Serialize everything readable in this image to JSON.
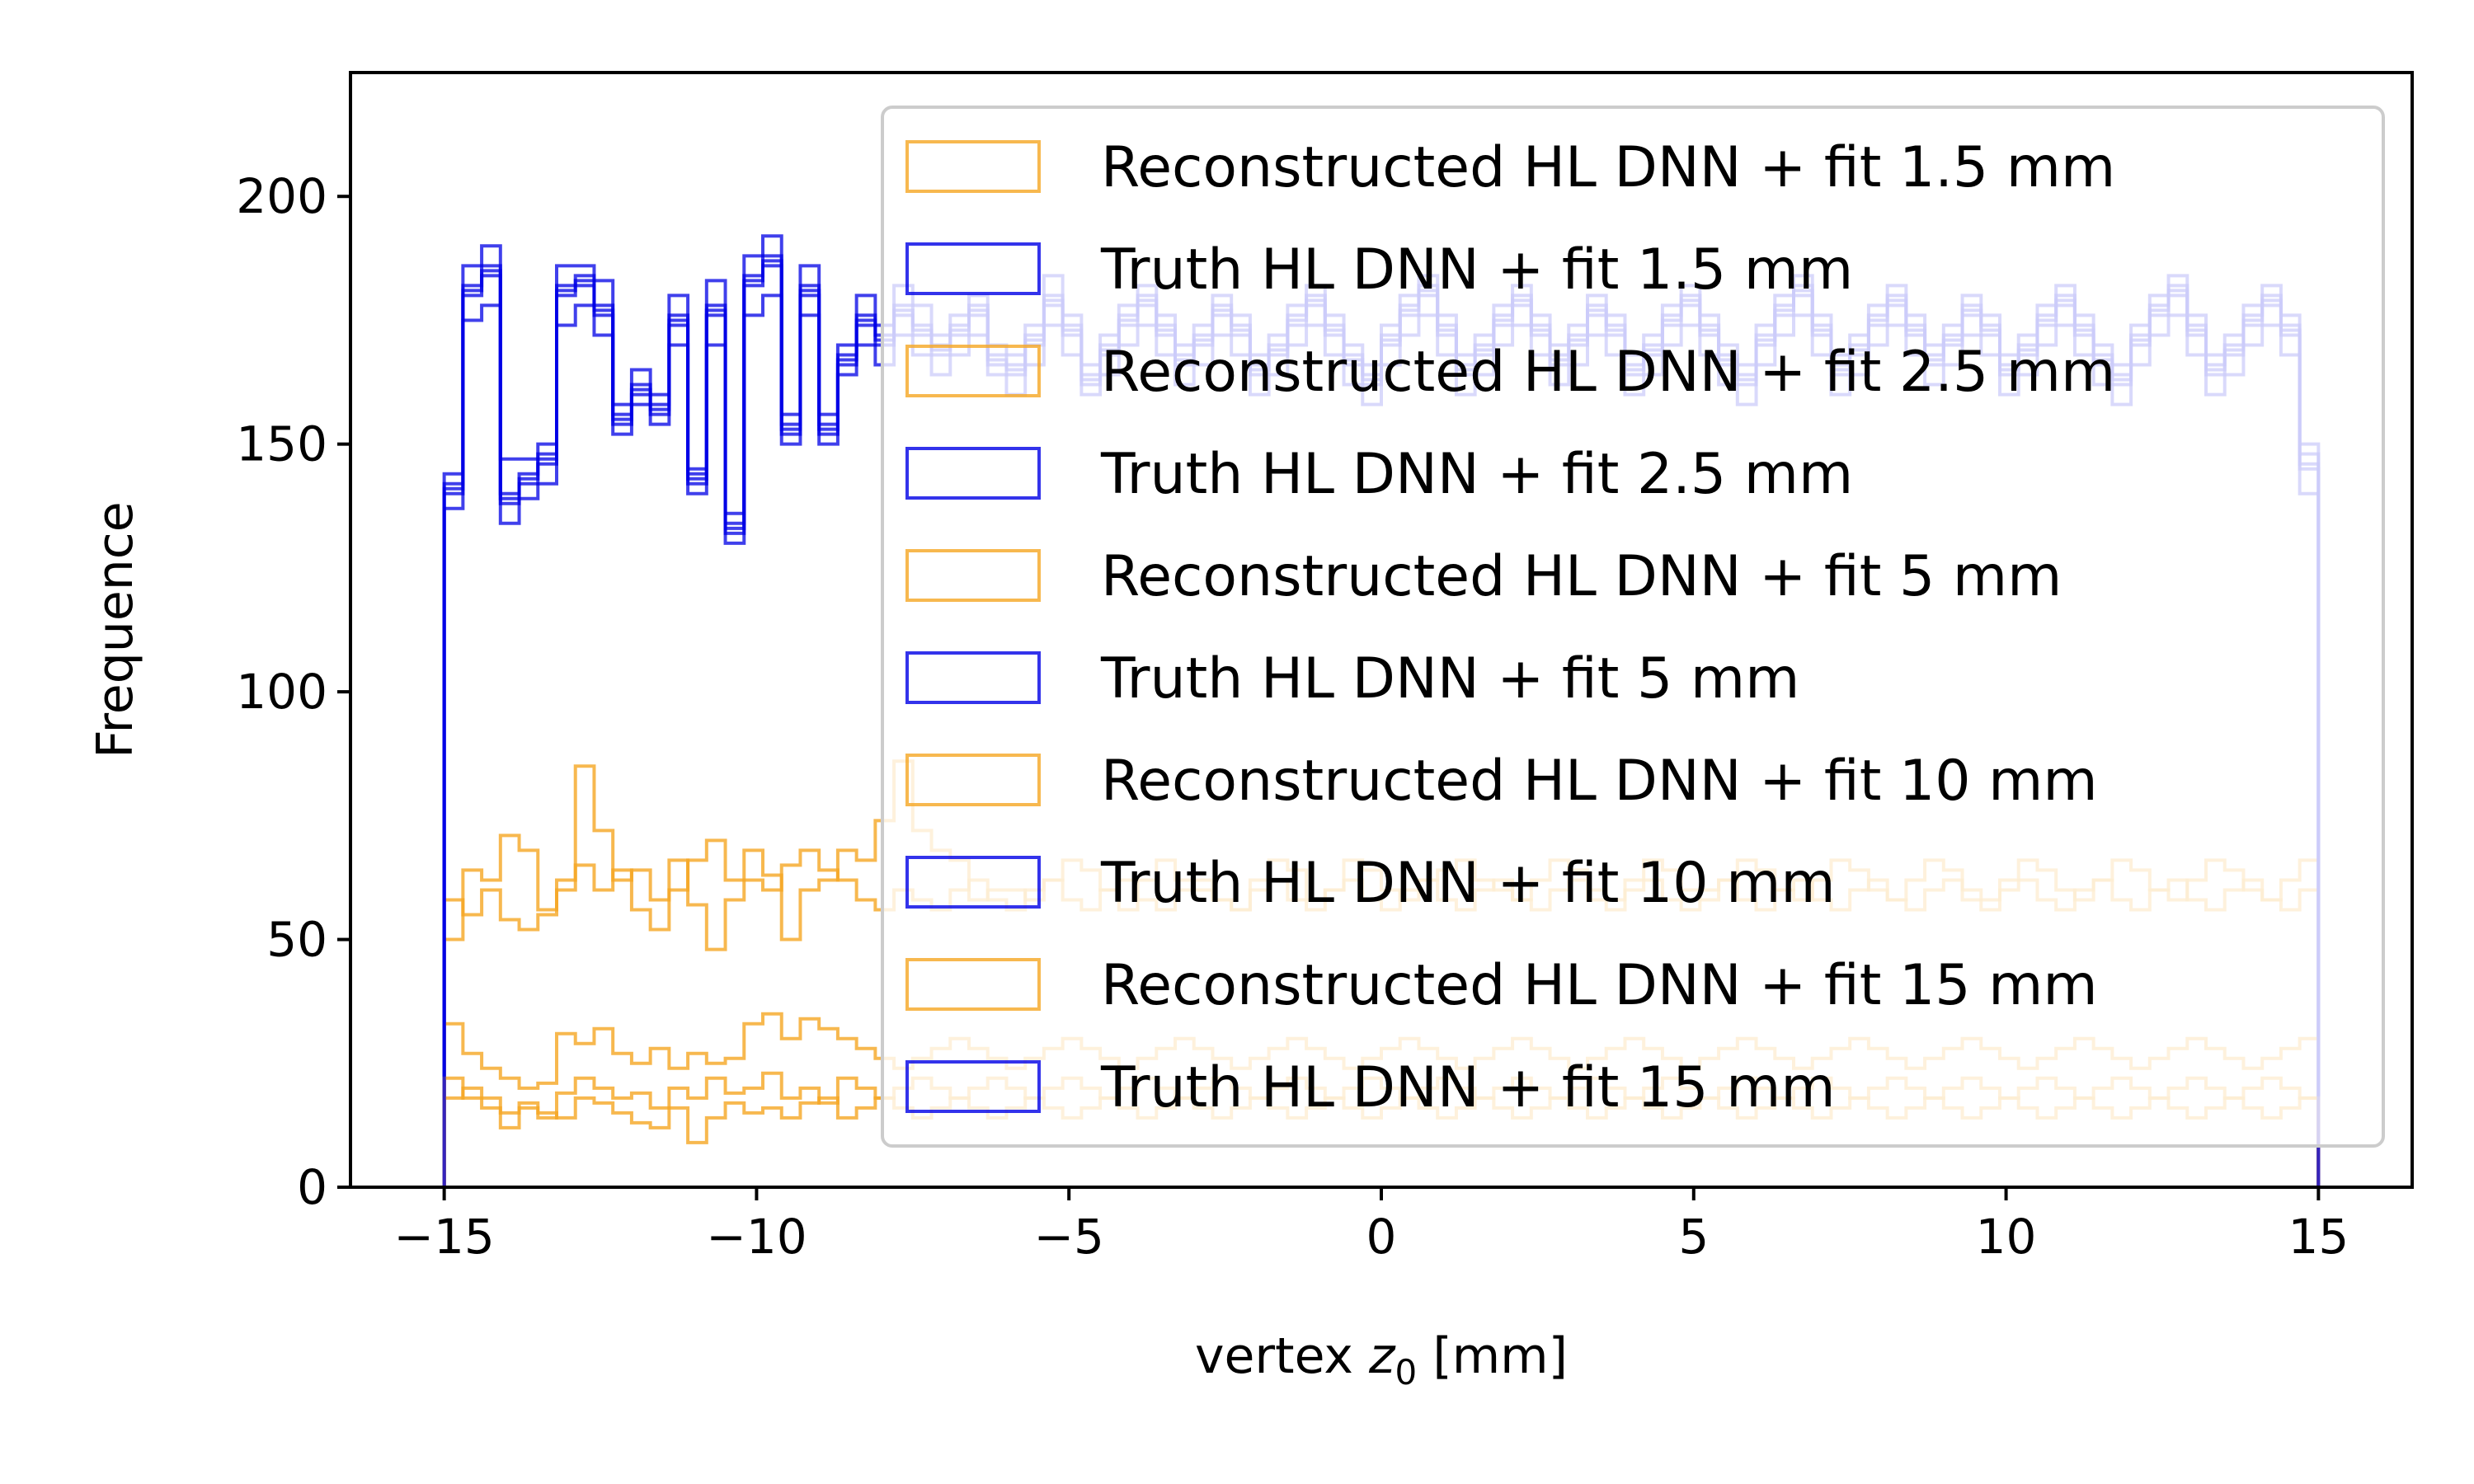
{
  "colors": {
    "reconstructed": "#f5a623",
    "truth": "#0000e6",
    "legend_frame": "#cccccc"
  },
  "chart_data": {
    "type": "histogram-step",
    "xlabel_prefix": "vertex ",
    "xlabel_var": "z",
    "xlabel_sub": "0",
    "xlabel_suffix": " [mm]",
    "ylabel": "Frequence",
    "xlim": [
      -16.5,
      16.5
    ],
    "ylim": [
      0,
      225
    ],
    "x_ticks": [
      -15,
      -10,
      -5,
      0,
      5,
      10,
      15
    ],
    "x_tick_labels": [
      "−15",
      "−10",
      "−5",
      "0",
      "5",
      "10",
      "15"
    ],
    "y_ticks": [
      0,
      50,
      100,
      150,
      200
    ],
    "y_tick_labels": [
      "0",
      "50",
      "100",
      "150",
      "200"
    ],
    "bin_edges_range": [
      -15,
      15
    ],
    "bin_width": 0.3,
    "legend_position": "upper-right",
    "series": [
      {
        "name": "Reconstructed HL DNN + fit 1.5 mm",
        "kind": "reconstructed",
        "values": [
          50,
          64,
          62,
          71,
          68,
          56,
          60,
          85,
          72,
          62,
          64,
          58,
          60,
          66,
          70,
          62,
          68,
          63,
          50,
          60,
          62,
          68,
          66,
          74,
          86,
          72,
          68,
          66,
          58,
          60,
          60,
          58,
          62,
          66,
          64,
          60,
          56,
          62,
          66,
          62,
          60,
          58,
          56,
          62,
          66,
          64,
          58,
          60,
          66,
          64,
          60,
          58,
          62,
          64,
          66,
          62,
          60,
          58,
          62,
          66,
          64,
          60,
          58,
          62,
          66,
          64,
          60,
          58,
          62,
          66,
          64,
          60,
          58,
          62,
          66,
          64,
          60,
          58,
          62,
          66,
          64,
          60,
          58,
          62,
          66,
          64,
          60,
          58,
          62,
          66,
          64,
          60,
          58,
          62,
          66,
          64,
          60,
          58,
          62,
          66
        ]
      },
      {
        "name": "Truth HL DNN + fit 1.5 mm",
        "kind": "truth",
        "values": [
          144,
          186,
          190,
          147,
          147,
          150,
          186,
          186,
          183,
          158,
          165,
          160,
          180,
          145,
          183,
          136,
          188,
          192,
          156,
          186,
          156,
          170,
          180,
          174,
          182,
          178,
          172,
          176,
          180,
          170,
          168,
          174,
          184,
          176,
          166,
          172,
          178,
          182,
          176,
          170,
          174,
          180,
          176,
          168,
          172,
          178,
          182,
          176,
          170,
          166,
          174,
          180,
          184,
          176,
          168,
          172,
          178,
          182,
          176,
          170,
          174,
          180,
          176,
          168,
          172,
          178,
          182,
          176,
          170,
          166,
          174,
          180,
          184,
          176,
          168,
          172,
          178,
          182,
          176,
          170,
          174,
          180,
          176,
          168,
          172,
          178,
          182,
          176,
          170,
          166,
          174,
          180,
          184,
          176,
          168,
          172,
          178,
          182,
          176,
          150
        ]
      },
      {
        "name": "Reconstructed HL DNN + fit 2.5 mm",
        "kind": "reconstructed",
        "values": [
          58,
          55,
          60,
          54,
          52,
          55,
          62,
          65,
          60,
          64,
          56,
          52,
          66,
          57,
          48,
          58,
          62,
          60,
          65,
          68,
          64,
          62,
          58,
          56,
          60,
          58,
          56,
          60,
          62,
          58,
          56,
          60,
          62,
          58,
          56,
          60,
          62,
          58,
          56,
          60,
          62,
          58,
          56,
          60,
          62,
          58,
          56,
          60,
          62,
          58,
          56,
          60,
          62,
          58,
          56,
          60,
          62,
          58,
          56,
          60,
          62,
          58,
          56,
          60,
          62,
          58,
          56,
          60,
          62,
          58,
          56,
          60,
          62,
          58,
          56,
          60,
          62,
          58,
          56,
          60,
          62,
          58,
          56,
          60,
          62,
          58,
          56,
          60,
          62,
          58,
          56,
          60,
          62,
          58,
          56,
          60,
          62,
          58,
          56,
          60
        ]
      },
      {
        "name": "Truth HL DNN + fit 2.5 mm",
        "kind": "truth",
        "values": [
          137,
          175,
          178,
          134,
          139,
          142,
          174,
          178,
          172,
          152,
          158,
          154,
          170,
          140,
          170,
          130,
          176,
          180,
          150,
          176,
          150,
          164,
          170,
          166,
          172,
          168,
          164,
          168,
          172,
          164,
          160,
          166,
          174,
          168,
          160,
          164,
          170,
          174,
          168,
          162,
          166,
          172,
          168,
          160,
          164,
          170,
          174,
          168,
          162,
          158,
          166,
          172,
          176,
          168,
          160,
          164,
          170,
          174,
          168,
          162,
          166,
          172,
          168,
          160,
          164,
          170,
          174,
          168,
          162,
          158,
          166,
          172,
          176,
          168,
          160,
          164,
          170,
          174,
          168,
          162,
          166,
          172,
          168,
          160,
          164,
          170,
          174,
          168,
          162,
          158,
          166,
          172,
          176,
          168,
          160,
          164,
          170,
          174,
          168,
          140
        ]
      },
      {
        "name": "Reconstructed HL DNN + fit 5 mm",
        "kind": "reconstructed",
        "values": [
          33,
          27,
          24,
          22,
          20,
          21,
          31,
          29,
          32,
          27,
          25,
          28,
          24,
          27,
          25,
          26,
          33,
          35,
          30,
          34,
          32,
          30,
          28,
          26,
          24,
          26,
          28,
          30,
          28,
          26,
          24,
          26,
          28,
          30,
          28,
          26,
          24,
          26,
          28,
          30,
          28,
          26,
          24,
          26,
          28,
          30,
          28,
          26,
          24,
          26,
          28,
          30,
          28,
          26,
          24,
          26,
          28,
          30,
          28,
          26,
          24,
          26,
          28,
          30,
          28,
          26,
          24,
          26,
          28,
          30,
          28,
          26,
          24,
          26,
          28,
          30,
          28,
          26,
          24,
          26,
          28,
          30,
          28,
          26,
          24,
          26,
          28,
          30,
          28,
          26,
          24,
          26,
          28,
          30,
          28,
          26,
          24,
          26,
          28,
          30
        ]
      },
      {
        "name": "Truth HL DNN + fit 5 mm",
        "kind": "truth",
        "values": [
          140,
          180,
          184,
          138,
          142,
          146,
          180,
          182,
          176,
          154,
          160,
          156,
          174,
          142,
          176,
          132,
          182,
          186,
          152,
          180,
          152,
          166,
          174,
          170,
          176,
          172,
          168,
          172,
          176,
          166,
          164,
          170,
          178,
          172,
          162,
          168,
          174,
          178,
          172,
          166,
          170,
          176,
          172,
          164,
          168,
          174,
          178,
          172,
          166,
          162,
          170,
          176,
          180,
          172,
          164,
          168,
          174,
          178,
          172,
          166,
          170,
          176,
          172,
          164,
          168,
          174,
          178,
          172,
          166,
          162,
          170,
          176,
          180,
          172,
          164,
          168,
          174,
          178,
          172,
          166,
          170,
          176,
          172,
          164,
          168,
          174,
          178,
          172,
          166,
          162,
          170,
          176,
          180,
          172,
          164,
          168,
          174,
          178,
          172,
          145
        ]
      },
      {
        "name": "Reconstructed HL DNN + fit 10 mm",
        "kind": "reconstructed",
        "values": [
          18,
          20,
          18,
          15,
          17,
          14,
          19,
          22,
          20,
          18,
          19,
          16,
          20,
          18,
          22,
          19,
          20,
          23,
          18,
          20,
          17,
          22,
          20,
          18,
          20,
          22,
          20,
          18,
          20,
          22,
          20,
          18,
          20,
          22,
          20,
          18,
          20,
          22,
          20,
          18,
          20,
          22,
          20,
          18,
          20,
          22,
          20,
          18,
          20,
          22,
          20,
          18,
          20,
          22,
          20,
          18,
          20,
          22,
          20,
          18,
          20,
          22,
          20,
          18,
          20,
          22,
          20,
          18,
          20,
          22,
          20,
          18,
          20,
          22,
          20,
          18,
          20,
          22,
          20,
          18,
          20,
          22,
          20,
          18,
          20,
          22,
          20,
          18,
          20,
          22,
          20,
          18,
          20,
          22,
          20,
          18,
          20,
          22,
          20,
          18
        ]
      },
      {
        "name": "Truth HL DNN + fit 10 mm",
        "kind": "truth",
        "values": [
          142,
          182,
          186,
          140,
          144,
          148,
          182,
          184,
          178,
          156,
          162,
          158,
          176,
          144,
          178,
          134,
          184,
          188,
          154,
          182,
          154,
          168,
          176,
          172,
          178,
          174,
          170,
          174,
          178,
          168,
          166,
          172,
          180,
          174,
          164,
          170,
          176,
          180,
          174,
          168,
          172,
          178,
          174,
          166,
          170,
          176,
          180,
          174,
          168,
          164,
          172,
          178,
          182,
          174,
          166,
          170,
          176,
          180,
          174,
          168,
          172,
          178,
          174,
          166,
          170,
          176,
          180,
          174,
          168,
          164,
          172,
          178,
          182,
          174,
          166,
          170,
          176,
          180,
          174,
          168,
          172,
          178,
          174,
          166,
          170,
          176,
          180,
          174,
          168,
          164,
          172,
          178,
          182,
          174,
          166,
          170,
          176,
          180,
          174,
          148
        ]
      },
      {
        "name": "Reconstructed HL DNN + fit 15 mm",
        "kind": "reconstructed",
        "values": [
          22,
          18,
          16,
          12,
          16,
          15,
          14,
          18,
          17,
          15,
          13,
          12,
          16,
          9,
          14,
          17,
          15,
          16,
          14,
          17,
          18,
          14,
          16,
          18,
          16,
          14,
          16,
          18,
          16,
          14,
          16,
          18,
          16,
          14,
          16,
          18,
          16,
          14,
          16,
          18,
          16,
          14,
          16,
          18,
          16,
          14,
          16,
          18,
          16,
          14,
          16,
          18,
          16,
          14,
          16,
          18,
          16,
          14,
          16,
          18,
          16,
          14,
          16,
          18,
          16,
          14,
          16,
          18,
          16,
          14,
          16,
          18,
          16,
          14,
          16,
          18,
          16,
          14,
          16,
          18,
          16,
          14,
          16,
          18,
          16,
          14,
          16,
          18,
          16,
          14,
          16,
          18,
          16,
          14,
          16,
          18,
          16,
          14,
          16,
          18
        ]
      },
      {
        "name": "Truth HL DNN + fit 15 mm",
        "kind": "truth",
        "values": [
          141,
          181,
          185,
          139,
          143,
          147,
          181,
          183,
          177,
          155,
          161,
          157,
          175,
          143,
          177,
          133,
          183,
          187,
          153,
          181,
          153,
          167,
          175,
          171,
          177,
          173,
          169,
          173,
          177,
          167,
          165,
          171,
          179,
          173,
          163,
          169,
          175,
          179,
          173,
          167,
          171,
          177,
          173,
          165,
          169,
          175,
          179,
          173,
          167,
          163,
          171,
          177,
          181,
          173,
          165,
          169,
          175,
          179,
          173,
          167,
          171,
          177,
          173,
          165,
          169,
          175,
          179,
          173,
          167,
          163,
          171,
          177,
          181,
          173,
          165,
          169,
          175,
          179,
          173,
          167,
          171,
          177,
          173,
          165,
          169,
          175,
          179,
          173,
          167,
          163,
          171,
          177,
          181,
          173,
          165,
          169,
          175,
          179,
          173,
          146
        ]
      }
    ]
  }
}
